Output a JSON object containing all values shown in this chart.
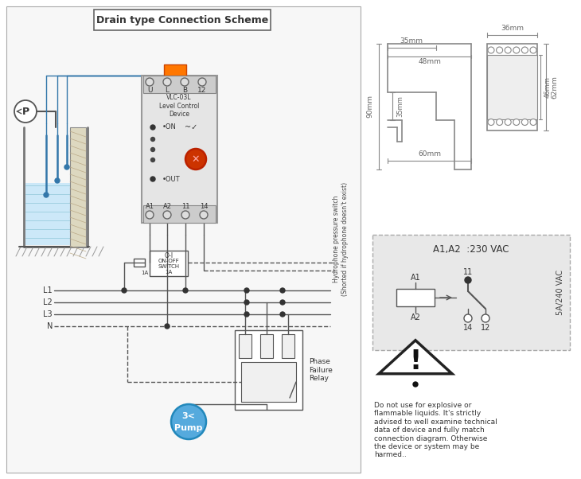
{
  "title": "Drain type Connection Scheme",
  "bg_color": "#ffffff",
  "relay_labels": {
    "title": "A1,A2  :230 VAC",
    "A1": "A1",
    "A2": "A2",
    "11": "11",
    "14": "14",
    "12": "12",
    "vac": "5A/240 VAC"
  },
  "lines_L": [
    "L1",
    "L2",
    "L3",
    "N"
  ],
  "phase_relay_label": "Phase\nFailure\nRelay",
  "hydro_label": "Hydrophone pressure switch\n(Shorted if hydrophone doesn't exist)",
  "pump_label": "3<\nPump",
  "device_label": "VLC-03L\nLevel Control\nDevice",
  "on_label": "ON",
  "out_label": "OUT",
  "warning_text": "Do not use for explosive or\nflammable liquids. It's strictly\nadvised to well examine technical\ndata of device and fully match\nconnection diagram. Otherwise\nthe device or system may be\nharmed.."
}
